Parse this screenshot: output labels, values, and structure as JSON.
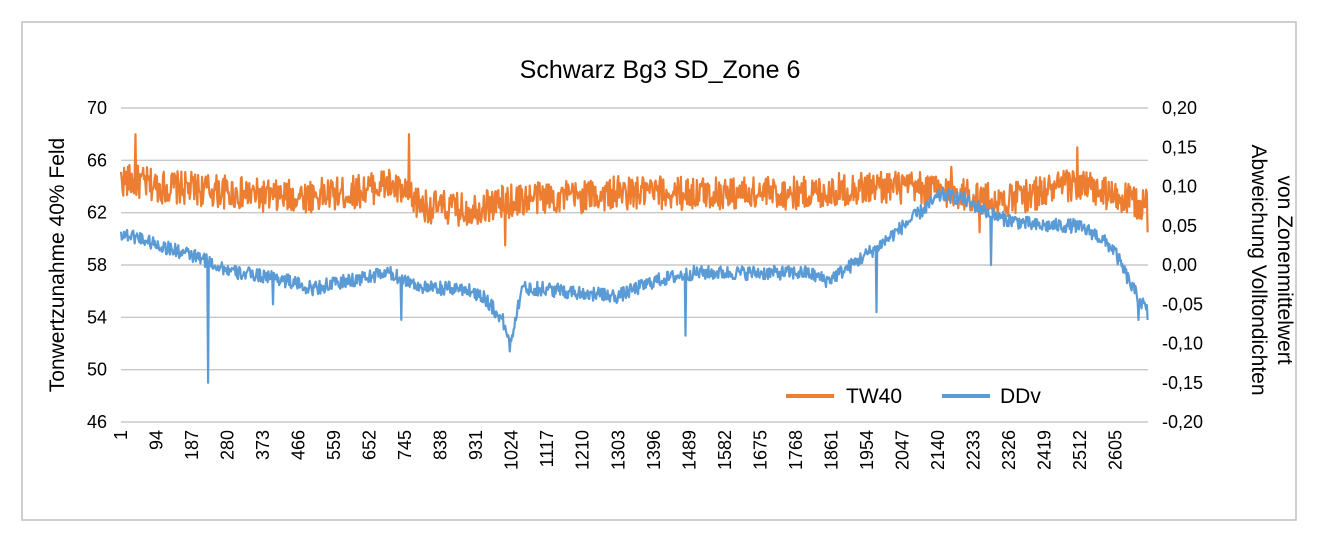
{
  "chart_data": {
    "type": "line",
    "title": "Schwarz Bg3 SD_Zone 6",
    "xlabel": "",
    "ylabel_left": "Tonwertzunahme 40% Feld",
    "ylabel_right_line1": "Abweichung Volltondichten",
    "ylabel_right_line2": "von Zonenmittelwert",
    "x_range": [
      1,
      2690
    ],
    "x_tick_labels": [
      "1",
      "94",
      "187",
      "280",
      "373",
      "466",
      "559",
      "652",
      "745",
      "838",
      "931",
      "1024",
      "1117",
      "1210",
      "1303",
      "1396",
      "1489",
      "1582",
      "1675",
      "1768",
      "1861",
      "1954",
      "2047",
      "2140",
      "2233",
      "2326",
      "2419",
      "2512",
      "2605"
    ],
    "y_left": {
      "min": 46,
      "max": 70,
      "ticks": [
        "46",
        "50",
        "54",
        "58",
        "62",
        "66",
        "70"
      ]
    },
    "y_right": {
      "min": -0.2,
      "max": 0.2,
      "ticks": [
        "-0,20",
        "-0,15",
        "-0,10",
        "-0,05",
        "0,00",
        "0,05",
        "0,10",
        "0,15",
        "0,20"
      ]
    },
    "grid": true,
    "legend_position": "bottom-right",
    "series": [
      {
        "name": "TW40",
        "axis": "left",
        "color": "#ed7d31",
        "noise_amplitude": 1.3,
        "spikes": [
          [
            40,
            68
          ],
          [
            755,
            68
          ],
          [
            1008,
            59.5
          ],
          [
            2175,
            65.5
          ],
          [
            2250,
            60.5
          ],
          [
            2320,
            62
          ],
          [
            2505,
            67
          ],
          [
            2690,
            60.5
          ]
        ],
        "x": [
          1,
          50,
          100,
          200,
          300,
          400,
          500,
          600,
          700,
          760,
          800,
          900,
          1000,
          1100,
          1200,
          1300,
          1400,
          1500,
          1600,
          1700,
          1800,
          1900,
          2000,
          2100,
          2200,
          2300,
          2400,
          2500,
          2600,
          2690
        ],
        "y": [
          64.5,
          64.3,
          64,
          63.8,
          63.5,
          63.2,
          63.3,
          63.5,
          64.2,
          63,
          62.5,
          62.2,
          62.8,
          63.2,
          63.2,
          63.5,
          63.5,
          63.5,
          63.5,
          63.5,
          63.5,
          63.8,
          64,
          63.8,
          63.5,
          62.8,
          63.5,
          64.2,
          63.2,
          62.5
        ]
      },
      {
        "name": "DDv",
        "axis": "right",
        "color": "#5b9bd5",
        "noise_amplitude": 0.009,
        "spikes": [
          [
            230,
            -0.15
          ],
          [
            400,
            -0.05
          ],
          [
            735,
            -0.07
          ],
          [
            1020,
            -0.11
          ],
          [
            1480,
            -0.09
          ],
          [
            1980,
            -0.06
          ],
          [
            2280,
            0
          ],
          [
            2665,
            -0.07
          ],
          [
            2690,
            -0.07
          ]
        ],
        "x": [
          1,
          50,
          100,
          200,
          300,
          400,
          500,
          600,
          700,
          800,
          900,
          950,
          1000,
          1020,
          1050,
          1100,
          1200,
          1300,
          1400,
          1500,
          1600,
          1700,
          1800,
          1850,
          1900,
          2000,
          2100,
          2150,
          2200,
          2300,
          2400,
          2500,
          2550,
          2600,
          2650,
          2690
        ],
        "y": [
          0.04,
          0.035,
          0.025,
          0.01,
          -0.01,
          -0.015,
          -0.03,
          -0.02,
          -0.01,
          -0.03,
          -0.03,
          -0.04,
          -0.07,
          -0.1,
          -0.03,
          -0.03,
          -0.035,
          -0.04,
          -0.02,
          -0.01,
          -0.01,
          -0.01,
          -0.01,
          -0.02,
          -0.005,
          0.03,
          0.07,
          0.09,
          0.085,
          0.06,
          0.05,
          0.05,
          0.04,
          0.02,
          -0.03,
          -0.06
        ]
      }
    ]
  }
}
